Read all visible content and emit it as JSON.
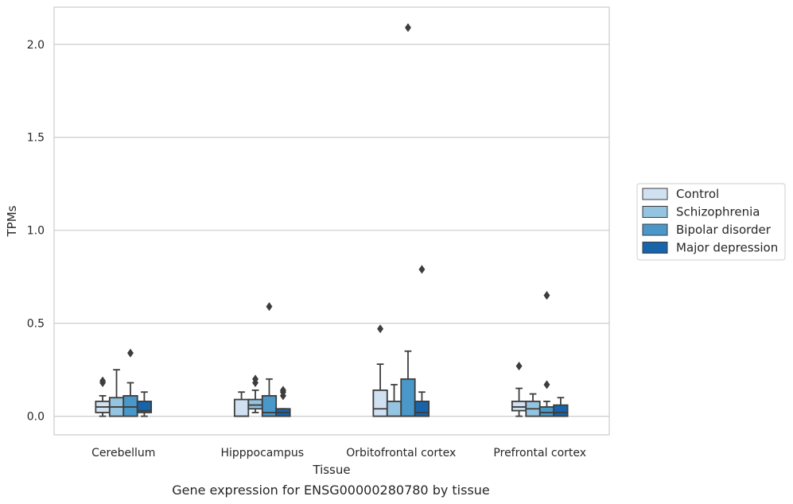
{
  "chart_data": {
    "type": "box",
    "title": "",
    "caption": "Gene expression for ENSG00000280780 by tissue",
    "xlabel": "Tissue",
    "ylabel": "TPMs",
    "ylim": [
      -0.1,
      2.2
    ],
    "yticks": [
      0.0,
      0.5,
      1.0,
      1.5,
      2.0
    ],
    "ytick_labels": [
      "0.0",
      "0.5",
      "1.0",
      "1.5",
      "2.0"
    ],
    "grid": "horizontal",
    "legend_position": "right",
    "categories": [
      "Cerebellum",
      "Hipppocampus",
      "Orbitofrontal cortex",
      "Prefrontal cortex"
    ],
    "series": [
      {
        "name": "Control",
        "color": "#d0e1f2",
        "boxes": [
          {
            "whisker_low": 0.0,
            "q1": 0.02,
            "median": 0.05,
            "q3": 0.08,
            "whisker_high": 0.11,
            "outliers": [
              0.18,
              0.19
            ]
          },
          {
            "whisker_low": 0.0,
            "q1": 0.0,
            "median": 0.0,
            "q3": 0.09,
            "whisker_high": 0.13,
            "outliers": []
          },
          {
            "whisker_low": 0.0,
            "q1": 0.0,
            "median": 0.04,
            "q3": 0.14,
            "whisker_high": 0.28,
            "outliers": [
              0.47
            ]
          },
          {
            "whisker_low": 0.0,
            "q1": 0.03,
            "median": 0.05,
            "q3": 0.08,
            "whisker_high": 0.15,
            "outliers": [
              0.27
            ]
          }
        ]
      },
      {
        "name": "Schizophrenia",
        "color": "#94c4df",
        "boxes": [
          {
            "whisker_low": 0.0,
            "q1": 0.0,
            "median": 0.05,
            "q3": 0.1,
            "whisker_high": 0.25,
            "outliers": []
          },
          {
            "whisker_low": 0.02,
            "q1": 0.04,
            "median": 0.06,
            "q3": 0.09,
            "whisker_high": 0.14,
            "outliers": [
              0.18,
              0.2
            ]
          },
          {
            "whisker_low": 0.0,
            "q1": 0.0,
            "median": 0.0,
            "q3": 0.08,
            "whisker_high": 0.17,
            "outliers": []
          },
          {
            "whisker_low": 0.0,
            "q1": 0.0,
            "median": 0.04,
            "q3": 0.08,
            "whisker_high": 0.12,
            "outliers": []
          }
        ]
      },
      {
        "name": "Bipolar disorder",
        "color": "#4a98c9",
        "boxes": [
          {
            "whisker_low": 0.0,
            "q1": 0.0,
            "median": 0.05,
            "q3": 0.11,
            "whisker_high": 0.18,
            "outliers": [
              0.34
            ]
          },
          {
            "whisker_low": 0.0,
            "q1": 0.0,
            "median": 0.02,
            "q3": 0.11,
            "whisker_high": 0.2,
            "outliers": [
              0.59
            ]
          },
          {
            "whisker_low": 0.0,
            "q1": 0.0,
            "median": 0.0,
            "q3": 0.2,
            "whisker_high": 0.35,
            "outliers": [
              2.09
            ]
          },
          {
            "whisker_low": 0.0,
            "q1": 0.0,
            "median": 0.02,
            "q3": 0.05,
            "whisker_high": 0.08,
            "outliers": [
              0.17,
              0.65
            ]
          }
        ]
      },
      {
        "name": "Major depression",
        "color": "#1764ab",
        "boxes": [
          {
            "whisker_low": 0.0,
            "q1": 0.02,
            "median": 0.03,
            "q3": 0.08,
            "whisker_high": 0.13,
            "outliers": []
          },
          {
            "whisker_low": 0.0,
            "q1": 0.0,
            "median": 0.02,
            "q3": 0.04,
            "whisker_high": 0.04,
            "outliers": [
              0.11,
              0.13,
              0.14
            ]
          },
          {
            "whisker_low": 0.0,
            "q1": 0.0,
            "median": 0.02,
            "q3": 0.08,
            "whisker_high": 0.13,
            "outliers": [
              0.79
            ]
          },
          {
            "whisker_low": 0.0,
            "q1": 0.0,
            "median": 0.02,
            "q3": 0.06,
            "whisker_high": 0.1,
            "outliers": []
          }
        ]
      }
    ]
  }
}
